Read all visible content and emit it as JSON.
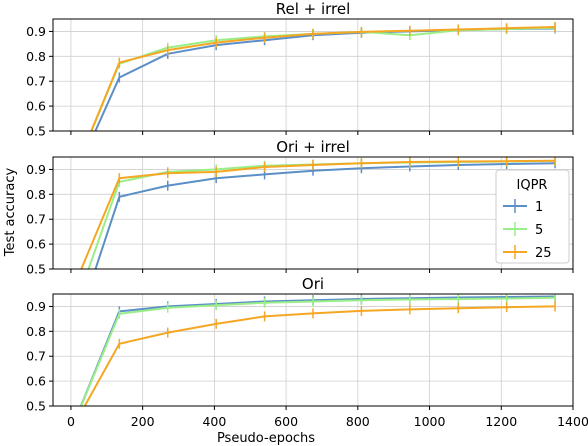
{
  "chart_data": {
    "type": "line",
    "xlabel": "Pseudo-epochs",
    "ylabel": "Test accuracy",
    "xlim": [
      -50,
      1400
    ],
    "x_ticks": [
      0,
      200,
      400,
      600,
      800,
      1000,
      1200,
      1400
    ],
    "ylim": [
      0.5,
      0.95
    ],
    "y_ticks": [
      0.5,
      0.6,
      0.7,
      0.8,
      0.9
    ],
    "grid": true,
    "error_bars": true,
    "legend": {
      "title": "IQPR",
      "position": "center-right",
      "entries": [
        "1",
        "5",
        "25"
      ]
    },
    "colors": {
      "1": "#5b8fc7",
      "5": "#99ee88",
      "25": "#f5a623"
    },
    "panels": [
      {
        "title": "Rel + irrel",
        "series": [
          {
            "name": "1",
            "x": [
              0,
              135,
              270,
              405,
              540,
              675,
              810,
              945,
              1080,
              1215,
              1350
            ],
            "y": [
              0.28,
              0.715,
              0.81,
              0.845,
              0.865,
              0.885,
              0.895,
              0.9,
              0.905,
              0.91,
              0.912
            ]
          },
          {
            "name": "5",
            "x": [
              0,
              135,
              270,
              405,
              540,
              675,
              810,
              945,
              1080,
              1215,
              1350
            ],
            "y": [
              0.3,
              0.77,
              0.835,
              0.865,
              0.88,
              0.89,
              0.898,
              0.885,
              0.905,
              0.91,
              0.915
            ]
          },
          {
            "name": "25",
            "x": [
              0,
              135,
              270,
              405,
              540,
              675,
              810,
              945,
              1080,
              1215,
              1350
            ],
            "y": [
              0.3,
              0.775,
              0.825,
              0.855,
              0.875,
              0.89,
              0.898,
              0.903,
              0.908,
              0.913,
              0.918
            ]
          }
        ]
      },
      {
        "title": "Ori + irrel",
        "series": [
          {
            "name": "1",
            "x": [
              0,
              135,
              270,
              405,
              540,
              675,
              810,
              945,
              1080,
              1215,
              1350
            ],
            "y": [
              0.2,
              0.79,
              0.835,
              0.865,
              0.88,
              0.895,
              0.905,
              0.912,
              0.918,
              0.922,
              0.925
            ]
          },
          {
            "name": "5",
            "x": [
              0,
              135,
              270,
              405,
              540,
              675,
              810,
              945,
              1080,
              1215,
              1350
            ],
            "y": [
              0.3,
              0.85,
              0.89,
              0.9,
              0.915,
              0.92,
              0.925,
              0.928,
              0.93,
              0.932,
              0.935
            ]
          },
          {
            "name": "25",
            "x": [
              0,
              135,
              270,
              405,
              540,
              675,
              810,
              945,
              1080,
              1215,
              1350
            ],
            "y": [
              0.4,
              0.865,
              0.885,
              0.89,
              0.91,
              0.918,
              0.925,
              0.93,
              0.932,
              0.933,
              0.935
            ]
          }
        ]
      },
      {
        "title": "Ori",
        "series": [
          {
            "name": "1",
            "x": [
              0,
              135,
              270,
              405,
              540,
              675,
              810,
              945,
              1080,
              1215,
              1350
            ],
            "y": [
              0.4,
              0.88,
              0.9,
              0.91,
              0.92,
              0.925,
              0.93,
              0.933,
              0.936,
              0.938,
              0.94
            ]
          },
          {
            "name": "5",
            "x": [
              0,
              135,
              270,
              405,
              540,
              675,
              810,
              945,
              1080,
              1215,
              1350
            ],
            "y": [
              0.4,
              0.87,
              0.895,
              0.905,
              0.915,
              0.92,
              0.925,
              0.928,
              0.93,
              0.932,
              0.935
            ]
          },
          {
            "name": "25",
            "x": [
              0,
              135,
              270,
              405,
              540,
              675,
              810,
              945,
              1080,
              1215,
              1350
            ],
            "y": [
              0.4,
              0.75,
              0.795,
              0.83,
              0.86,
              0.872,
              0.882,
              0.888,
              0.893,
              0.897,
              0.9
            ]
          }
        ]
      }
    ]
  }
}
